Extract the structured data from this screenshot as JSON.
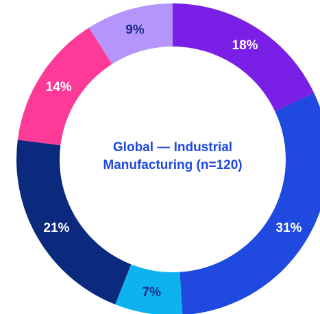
{
  "chart_data": {
    "type": "pie",
    "donut": true,
    "title_lines": [
      "Global — Industrial",
      "Manufacturing (n=120)"
    ],
    "slices": [
      {
        "value": 18,
        "label": "18%",
        "color": "#7a1fe6",
        "label_color": "#ffffff"
      },
      {
        "value": 31,
        "label": "31%",
        "color": "#1f49df",
        "label_color": "#ffffff"
      },
      {
        "value": 7,
        "label": "7%",
        "color": "#0db2ee",
        "label_color": "#1e2a8a"
      },
      {
        "value": 21,
        "label": "21%",
        "color": "#0b2a7e",
        "label_color": "#ffffff"
      },
      {
        "value": 14,
        "label": "14%",
        "color": "#fd3a98",
        "label_color": "#ffffff"
      },
      {
        "value": 9,
        "label": "9%",
        "color": "#b495fb",
        "label_color": "#1e2a8a"
      }
    ],
    "title_color": "#1f49df",
    "start": "top",
    "direction": "clockwise"
  }
}
